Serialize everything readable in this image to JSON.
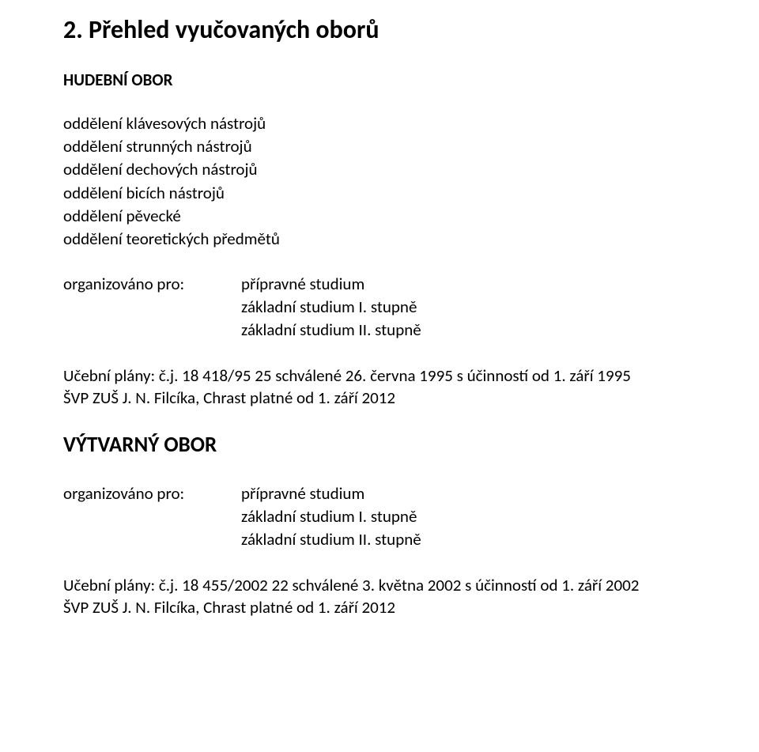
{
  "heading": "2. Přehled vyučovaných oborů",
  "section1": {
    "title": "HUDEBNÍ OBOR",
    "departments": [
      "oddělení klávesových nástrojů",
      "oddělení strunných nástrojů",
      "oddělení dechových nástrojů",
      "oddělení bicích nástrojů",
      "oddělení pěvecké",
      "oddělení teoretických předmětů"
    ],
    "organized_label": "organizováno pro:",
    "organized_values": [
      "přípravné studium",
      "základní studium I. stupně",
      "základní studium II. stupně"
    ],
    "plans_line1": "Učební plány: č.j. 18 418/95 25 schválené 26. června 1995 s účinností od 1. září 1995",
    "plans_line2": "ŠVP ZUŠ J. N. Filcíka, Chrast platné od 1. září 2012"
  },
  "section2": {
    "title": "VÝTVARNÝ OBOR",
    "organized_label": "organizováno pro:",
    "organized_values": [
      "přípravné studium",
      "základní studium I. stupně",
      "základní studium II. stupně"
    ],
    "plans_line1": "Učební plány: č.j. 18 455/2002 22 schválené 3. května 2002 s účinností od 1. září 2002",
    "plans_line2": "ŠVP ZUŠ J. N. Filcíka, Chrast platné od 1. září 2012"
  }
}
